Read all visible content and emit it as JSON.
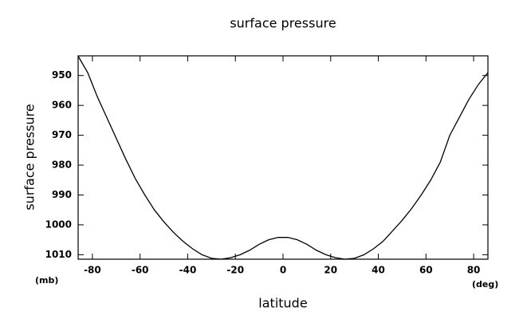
{
  "chart_data": {
    "type": "line",
    "title": "surface pressure",
    "x_label": "latitude",
    "y_label": "surface pressure",
    "x_unit": "(deg)",
    "y_unit": "(mb)",
    "x": [
      -86,
      -82,
      -78,
      -74,
      -70,
      -66,
      -62,
      -58,
      -54,
      -50,
      -46,
      -42,
      -38,
      -34,
      -30,
      -26,
      -22,
      -18,
      -14,
      -10,
      -6,
      -2,
      2,
      6,
      10,
      14,
      18,
      22,
      26,
      30,
      34,
      38,
      42,
      46,
      50,
      54,
      58,
      62,
      66,
      70,
      74,
      78,
      82,
      86
    ],
    "series": [
      {
        "name": "surface pressure",
        "color": "#000000",
        "values": [
          943.5,
          949,
          957,
          964,
          971,
          978,
          984.5,
          990,
          995,
          999,
          1002.5,
          1005.5,
          1008,
          1010,
          1011.2,
          1011.5,
          1011,
          1010,
          1008.5,
          1006.5,
          1005,
          1004.2,
          1004.2,
          1005,
          1006.5,
          1008.5,
          1010,
          1011,
          1011.5,
          1011.2,
          1010,
          1008,
          1005.5,
          1002,
          998.5,
          994.5,
          990,
          985,
          979,
          970,
          964,
          958,
          953,
          949
        ]
      }
    ],
    "xlim": [
      -86,
      86
    ],
    "ylim": [
      1011.5,
      943.4
    ],
    "xticks": [
      -80,
      -60,
      -40,
      -20,
      0,
      20,
      40,
      60,
      80
    ],
    "yticks": [
      950,
      960,
      970,
      980,
      990,
      1000,
      1010
    ]
  }
}
